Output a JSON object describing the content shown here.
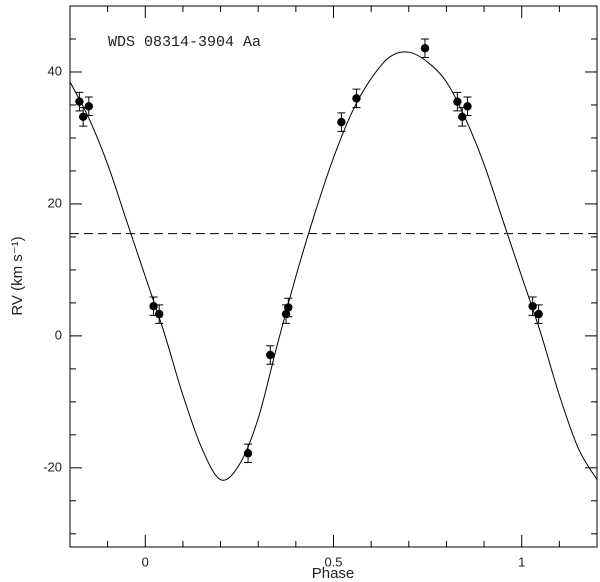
{
  "chart_data": {
    "type": "scatter",
    "annotation": "WDS 08314-3904 Aa",
    "xlabel": "Phase",
    "ylabel": "RV (km s⁻¹)",
    "xlim": [
      -0.2,
      1.2
    ],
    "ylim": [
      -32,
      50
    ],
    "xticks": [
      0,
      0.5,
      1
    ],
    "yticks": [
      -20,
      0,
      20,
      40
    ],
    "xminorticks": [
      -0.1,
      0.1,
      0.2,
      0.3,
      0.4,
      0.6,
      0.7,
      0.8,
      0.9,
      1.1
    ],
    "yminorticks": [
      -30,
      -25,
      -15,
      -10,
      -5,
      5,
      10,
      15,
      25,
      30,
      35,
      45
    ],
    "hline": 15.5,
    "series": [
      {
        "color": "#000000",
        "x": [
          -0.175,
          -0.165,
          -0.15,
          0.022,
          0.037,
          0.273,
          0.332,
          0.374,
          0.38,
          0.521,
          0.561,
          0.743,
          0.829,
          0.842,
          0.856,
          1.029,
          1.045
        ],
        "values": [
          35.5,
          33.2,
          34.8,
          4.5,
          3.3,
          -17.8,
          -2.9,
          3.3,
          4.3,
          32.4,
          36.0,
          43.6,
          35.5,
          33.2,
          34.8,
          4.5,
          3.3
        ],
        "errors": [
          1.4,
          1.4,
          1.4,
          1.4,
          1.4,
          1.4,
          1.4,
          1.4,
          1.4,
          1.4,
          1.4,
          1.4,
          1.4,
          1.4,
          1.4,
          1.4,
          1.4
        ]
      }
    ],
    "fit": {
      "color": "#000000",
      "x": [
        -0.2,
        -0.15,
        -0.1,
        -0.05,
        0,
        0.05,
        0.1,
        0.15,
        0.2,
        0.25,
        0.3,
        0.35,
        0.4,
        0.45,
        0.5,
        0.55,
        0.6,
        0.65,
        0.7,
        0.75,
        0.8,
        0.85,
        0.9,
        0.95,
        1,
        1.05,
        1.1,
        1.15,
        1.2
      ],
      "values": [
        38.5,
        33,
        26,
        17.5,
        9,
        0.5,
        -9,
        -17,
        -21.8,
        -19.5,
        -12.5,
        -1.5,
        9,
        18.5,
        27,
        34,
        39,
        42.3,
        43,
        41.5,
        38.5,
        33,
        26,
        17.5,
        9,
        0.5,
        -9,
        -17,
        -21.8
      ]
    }
  }
}
